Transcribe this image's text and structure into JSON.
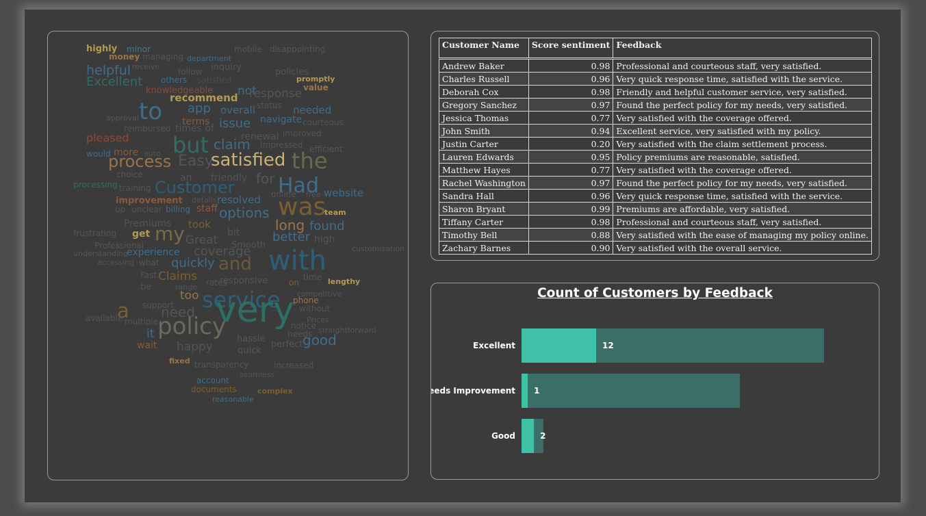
{
  "wordcloud": {
    "words": [
      {
        "text": "highly",
        "c": "#b59a54"
      },
      {
        "text": "minor",
        "c": "#3f7d8a"
      },
      {
        "text": "mobile",
        "c": "#555555"
      },
      {
        "text": "disappointing",
        "c": "#555555"
      },
      {
        "text": "money",
        "c": "#9a7448"
      },
      {
        "text": "managing",
        "c": "#555555"
      },
      {
        "text": "department",
        "c": "#3f6d8a"
      },
      {
        "text": "helpful",
        "c": "#3f6d8a"
      },
      {
        "text": "receive",
        "c": "#555555"
      },
      {
        "text": "inquiry",
        "c": "#555555"
      },
      {
        "text": "follow",
        "c": "#555555"
      },
      {
        "text": "policies",
        "c": "#555555"
      },
      {
        "text": "Excellent",
        "c": "#2e6f64"
      },
      {
        "text": "others",
        "c": "#3f6d8a"
      },
      {
        "text": "satisfied",
        "c": "#4a4a4a"
      },
      {
        "text": "promptly",
        "c": "#b59a54"
      },
      {
        "text": "value",
        "c": "#9a7448"
      },
      {
        "text": "knowledgeable",
        "c": "#8a4a3a"
      },
      {
        "text": "not",
        "c": "#3f6d8a"
      },
      {
        "text": "response",
        "c": "#555555"
      },
      {
        "text": "recommend",
        "c": "#b59a54"
      },
      {
        "text": "status",
        "c": "#555555"
      },
      {
        "text": "to",
        "c": "#3f6d8a"
      },
      {
        "text": "app",
        "c": "#3f6d8a"
      },
      {
        "text": "overall",
        "c": "#3f6d8a"
      },
      {
        "text": "needed",
        "c": "#3f6d8a"
      },
      {
        "text": "approval",
        "c": "#555555"
      },
      {
        "text": "terms",
        "c": "#8a5a3a"
      },
      {
        "text": "issue",
        "c": "#3f6d8a"
      },
      {
        "text": "navigate",
        "c": "#3f6d8a"
      },
      {
        "text": "courteous",
        "c": "#555555"
      },
      {
        "text": "reimbursed",
        "c": "#555555"
      },
      {
        "text": "times of",
        "c": "#555555"
      },
      {
        "text": "renewal",
        "c": "#555555"
      },
      {
        "text": "improved",
        "c": "#555555"
      },
      {
        "text": "pleased",
        "c": "#8a4a3a"
      },
      {
        "text": "claim",
        "c": "#3f6d8a"
      },
      {
        "text": "Impressed",
        "c": "#555555"
      },
      {
        "text": "efficient",
        "c": "#555555"
      },
      {
        "text": "but",
        "c": "#2e6f64"
      },
      {
        "text": "would",
        "c": "#3f6d8a"
      },
      {
        "text": "more",
        "c": "#8a5a3a"
      },
      {
        "text": "auto",
        "c": "#555555"
      },
      {
        "text": "process",
        "c": "#9a7448"
      },
      {
        "text": "Easy",
        "c": "#555555"
      },
      {
        "text": "satisfied",
        "c": "#c9b27a"
      },
      {
        "text": "the",
        "c": "#6a6a4a"
      },
      {
        "text": "choice",
        "c": "#555555"
      },
      {
        "text": "friendly",
        "c": "#555555"
      },
      {
        "text": "an",
        "c": "#555555"
      },
      {
        "text": "for",
        "c": "#555555"
      },
      {
        "text": "Had",
        "c": "#3f6d8a"
      },
      {
        "text": "processing",
        "c": "#2e6f64"
      },
      {
        "text": "Customer",
        "c": "#2e5f7a"
      },
      {
        "text": "training",
        "c": "#555555"
      },
      {
        "text": "online",
        "c": "#555555"
      },
      {
        "text": "free",
        "c": "#555555"
      },
      {
        "text": "website",
        "c": "#3f6d8a"
      },
      {
        "text": "improvement",
        "c": "#8a5a3a"
      },
      {
        "text": "details",
        "c": "#555555"
      },
      {
        "text": "resolved",
        "c": "#3f6d8a"
      },
      {
        "text": "was",
        "c": "#7a6030"
      },
      {
        "text": "up",
        "c": "#555555"
      },
      {
        "text": "unclear",
        "c": "#555555"
      },
      {
        "text": "billing",
        "c": "#3f6d8a"
      },
      {
        "text": "staff",
        "c": "#8a5a3a"
      },
      {
        "text": "options",
        "c": "#3f6d8a"
      },
      {
        "text": "team",
        "c": "#b59a54"
      },
      {
        "text": "Premiums",
        "c": "#555555"
      },
      {
        "text": "took",
        "c": "#7a6030"
      },
      {
        "text": "long",
        "c": "#9a7448"
      },
      {
        "text": "found",
        "c": "#3f6d8a"
      },
      {
        "text": "frustrating",
        "c": "#555555"
      },
      {
        "text": "get",
        "c": "#b59a54"
      },
      {
        "text": "my",
        "c": "#7a6a4a"
      },
      {
        "text": "bit",
        "c": "#555555"
      },
      {
        "text": "Great",
        "c": "#555555"
      },
      {
        "text": "better",
        "c": "#3f6d8a"
      },
      {
        "text": "high",
        "c": "#555555"
      },
      {
        "text": "Professional",
        "c": "#555555"
      },
      {
        "text": "Smooth",
        "c": "#555555"
      },
      {
        "text": "experience",
        "c": "#3f6d8a"
      },
      {
        "text": "coverage",
        "c": "#555555"
      },
      {
        "text": "customization",
        "c": "#555555"
      },
      {
        "text": "understanding",
        "c": "#555555"
      },
      {
        "text": "accessing",
        "c": "#555555"
      },
      {
        "text": "what",
        "c": "#555555"
      },
      {
        "text": "quickly",
        "c": "#3f6d8a"
      },
      {
        "text": "and",
        "c": "#6a5a3a"
      },
      {
        "text": "with",
        "c": "#2e5f7a"
      },
      {
        "text": "Fast",
        "c": "#555555"
      },
      {
        "text": "Claims",
        "c": "#7a6030"
      },
      {
        "text": "responsive",
        "c": "#555555"
      },
      {
        "text": "time",
        "c": "#555555"
      },
      {
        "text": "range",
        "c": "#555555"
      },
      {
        "text": "rates",
        "c": "#555555"
      },
      {
        "text": "on",
        "c": "#7a6030"
      },
      {
        "text": "lengthy",
        "c": "#b59a54"
      },
      {
        "text": "be",
        "c": "#555555"
      },
      {
        "text": "too",
        "c": "#9a7448"
      },
      {
        "text": "service",
        "c": "#2e5f7a"
      },
      {
        "text": "competitive",
        "c": "#555555"
      },
      {
        "text": "phone",
        "c": "#9a7448"
      },
      {
        "text": "a",
        "c": "#7a6030"
      },
      {
        "text": "support",
        "c": "#555555"
      },
      {
        "text": "very",
        "c": "#2e6f64"
      },
      {
        "text": "need",
        "c": "#555555"
      },
      {
        "text": "without",
        "c": "#555555"
      },
      {
        "text": "available",
        "c": "#555555"
      },
      {
        "text": "multiple",
        "c": "#555555"
      },
      {
        "text": "Prices",
        "c": "#555555"
      },
      {
        "text": "notice",
        "c": "#555555"
      },
      {
        "text": "straightforward",
        "c": "#555555"
      },
      {
        "text": "it",
        "c": "#3f6d8a"
      },
      {
        "text": "policy",
        "c": "#6a6a5a"
      },
      {
        "text": "needs",
        "c": "#555555"
      },
      {
        "text": "hassle",
        "c": "#555555"
      },
      {
        "text": "good",
        "c": "#3f6d8a"
      },
      {
        "text": "wait",
        "c": "#8a5a3a"
      },
      {
        "text": "happy",
        "c": "#555555"
      },
      {
        "text": "perfect",
        "c": "#555555"
      },
      {
        "text": "quick",
        "c": "#555555"
      },
      {
        "text": "fixed",
        "c": "#9a7448"
      },
      {
        "text": "transparency",
        "c": "#555555"
      },
      {
        "text": "increased",
        "c": "#555555"
      },
      {
        "text": "seamless",
        "c": "#555555"
      },
      {
        "text": "account",
        "c": "#3f6d8a"
      },
      {
        "text": "documents",
        "c": "#7a6030"
      },
      {
        "text": "complex",
        "c": "#7a6030"
      },
      {
        "text": "reasonable",
        "c": "#3f6d8a"
      }
    ]
  },
  "table": {
    "headers": [
      "Customer Name",
      "Score sentiment",
      "Feedback"
    ],
    "rows": [
      [
        "Andrew Baker",
        "0.98",
        "Professional and courteous staff, very satisfied."
      ],
      [
        "Charles Russell",
        "0.96",
        "Very quick response time, satisfied with the service."
      ],
      [
        "Deborah Cox",
        "0.98",
        "Friendly and helpful customer service, very satisfied."
      ],
      [
        "Gregory Sanchez",
        "0.97",
        "Found the perfect policy for my needs, very satisfied."
      ],
      [
        "Jessica Thomas",
        "0.77",
        "Very satisfied with the coverage offered."
      ],
      [
        "John Smith",
        "0.94",
        "Excellent service, very satisfied with my policy."
      ],
      [
        "Justin Carter",
        "0.20",
        "Very satisfied with the claim settlement process."
      ],
      [
        "Lauren Edwards",
        "0.95",
        "Policy premiums are reasonable, satisfied."
      ],
      [
        "Matthew Hayes",
        "0.77",
        "Very satisfied with the coverage offered."
      ],
      [
        "Rachel Washington",
        "0.97",
        "Found the perfect policy for my needs, very satisfied."
      ],
      [
        "Sandra Hall",
        "0.96",
        "Very quick response time, satisfied with the service."
      ],
      [
        "Sharon Bryant",
        "0.99",
        "Premiums are affordable, very satisfied."
      ],
      [
        "Tiffany Carter",
        "0.98",
        "Professional and courteous staff, very satisfied."
      ],
      [
        "Timothy Bell",
        "0.88",
        "Very satisfied with the ease of managing my policy online."
      ],
      [
        "Zachary Barnes",
        "0.90",
        "Very satisfied with the overall service."
      ]
    ]
  },
  "chart_data": {
    "type": "bar",
    "orientation": "horizontal",
    "title": "Count of Customers by Feedback",
    "categories": [
      "Excellent",
      "Needs Improvement",
      "Good"
    ],
    "values": [
      12,
      1,
      2
    ],
    "background_values": [
      0.9,
      0.65,
      0.065
    ],
    "colors": {
      "bar": "#3ec1a6",
      "track": "#3a6e66",
      "label": "#ffffff"
    }
  }
}
